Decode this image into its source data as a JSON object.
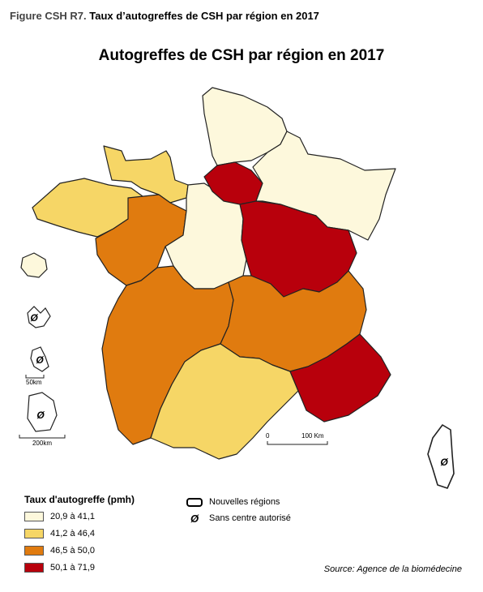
{
  "caption": {
    "figure_number": "Figure CSH R7.",
    "text": "Taux d’autogreffes de CSH par région en 2017"
  },
  "map_title": "Autogreffes de CSH par région en 2017",
  "colors": {
    "class1": "#fdf8dc",
    "class2": "#f6d666",
    "class3": "#e07b0f",
    "class4": "#b8000c"
  },
  "legend": {
    "title": "Taux d'autogreffe (pmh)",
    "classes": [
      {
        "label": "20,9 à 41,1",
        "color": "#fdf8dc"
      },
      {
        "label": "41,2 à 46,4",
        "color": "#f6d666"
      },
      {
        "label": "46,5 à 50,0",
        "color": "#e07b0f"
      },
      {
        "label": "50,1 à 71,9",
        "color": "#b8000c"
      }
    ],
    "regions_label": "Nouvelles régions",
    "no_center_symbol": "Ø",
    "no_center_label": "Sans centre autorisé"
  },
  "scale": {
    "main_start": "0",
    "main_end": "100 Km",
    "inset_small": "50km",
    "inset_large": "200km"
  },
  "map_symbols": {
    "no_center": "Ø"
  },
  "source": "Source: Agence de la biomédecine"
}
